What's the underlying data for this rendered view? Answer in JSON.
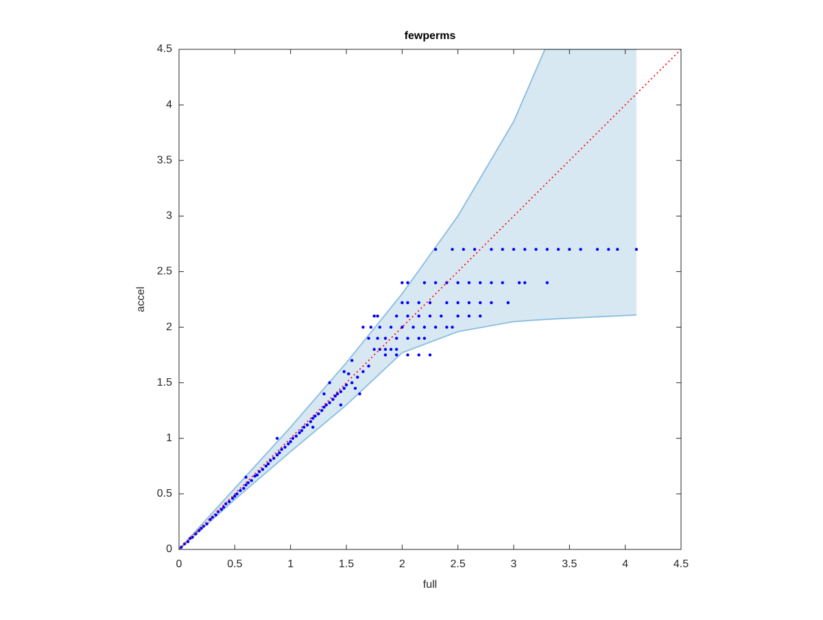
{
  "chart_data": {
    "type": "scatter",
    "title": "fewperms",
    "xlabel": "full",
    "ylabel": "accel",
    "xlim": [
      0,
      4.5
    ],
    "ylim": [
      0,
      4.5
    ],
    "xticks": [
      0,
      0.5,
      1,
      1.5,
      2,
      2.5,
      3,
      3.5,
      4,
      4.5
    ],
    "yticks": [
      0,
      0.5,
      1,
      1.5,
      2,
      2.5,
      3,
      3.5,
      4,
      4.5
    ],
    "grid": false,
    "band": {
      "color": "#d8e8f3",
      "edge_color": "#8fc0e0",
      "x": [
        0,
        0.5,
        1,
        1.5,
        2,
        2.5,
        3,
        3.28,
        4.1
      ],
      "upper": [
        0,
        0.55,
        1.1,
        1.68,
        2.3,
        3.0,
        3.85,
        4.5,
        4.5
      ],
      "lower": [
        0,
        0.45,
        0.88,
        1.3,
        1.77,
        1.96,
        2.05,
        2.07,
        2.11
      ]
    },
    "reference": {
      "color": "#ff0000",
      "x": [
        0,
        4.5
      ],
      "values": [
        0,
        4.5
      ]
    },
    "series": [
      {
        "color": "#0000ff",
        "x": [
          0.02,
          0.05,
          0.08,
          0.1,
          0.12,
          0.15,
          0.18,
          0.2,
          0.22,
          0.25,
          0.28,
          0.3,
          0.33,
          0.35,
          0.38,
          0.4,
          0.42,
          0.45,
          0.48,
          0.5,
          0.52,
          0.55,
          0.58,
          0.6,
          0.62,
          0.65,
          0.68,
          0.7,
          0.72,
          0.75,
          0.78,
          0.8,
          0.82,
          0.85,
          0.88,
          0.9,
          0.92,
          0.95,
          0.98,
          1.0,
          1.02,
          1.05,
          1.08,
          1.1,
          1.12,
          1.15,
          1.18,
          1.2,
          1.22,
          1.25,
          1.28,
          1.3,
          1.32,
          1.35,
          1.38,
          1.4,
          1.42,
          1.45,
          1.48,
          1.5,
          0.88,
          0.6,
          1.2,
          1.3,
          1.35,
          1.45,
          1.55,
          1.6,
          1.65,
          1.7,
          1.58,
          1.62,
          1.52,
          1.48,
          1.55,
          1.85,
          1.95,
          2.05,
          2.15,
          2.25,
          1.75,
          1.8,
          1.85,
          1.9,
          1.95,
          1.7,
          1.78,
          1.85,
          1.95,
          2.05,
          2.15,
          2.2,
          1.65,
          1.72,
          1.8,
          1.9,
          2.0,
          2.1,
          2.2,
          2.3,
          2.4,
          2.45,
          1.75,
          1.78,
          1.95,
          2.05,
          2.15,
          2.25,
          2.35,
          2.5,
          2.6,
          2.7,
          2.0,
          2.05,
          2.15,
          2.25,
          2.4,
          2.5,
          2.6,
          2.7,
          2.8,
          2.95,
          2.0,
          2.05,
          2.2,
          2.3,
          2.4,
          2.5,
          2.6,
          2.7,
          2.8,
          2.9,
          3.05,
          3.1,
          3.3,
          2.3,
          2.45,
          2.55,
          2.65,
          2.8,
          2.9,
          3.0,
          3.1,
          3.2,
          3.3,
          3.4,
          3.5,
          3.6,
          3.75,
          3.85,
          3.93,
          4.1
        ],
        "values": [
          0.02,
          0.05,
          0.07,
          0.1,
          0.11,
          0.14,
          0.17,
          0.19,
          0.21,
          0.23,
          0.27,
          0.29,
          0.31,
          0.34,
          0.36,
          0.38,
          0.41,
          0.43,
          0.46,
          0.48,
          0.5,
          0.53,
          0.55,
          0.58,
          0.6,
          0.62,
          0.66,
          0.67,
          0.7,
          0.72,
          0.75,
          0.77,
          0.8,
          0.82,
          0.85,
          0.87,
          0.9,
          0.92,
          0.95,
          0.97,
          1.0,
          1.02,
          1.05,
          1.07,
          1.1,
          1.12,
          1.15,
          1.18,
          1.2,
          1.22,
          1.25,
          1.28,
          1.3,
          1.32,
          1.35,
          1.38,
          1.4,
          1.42,
          1.45,
          1.48,
          1.0,
          0.65,
          1.1,
          1.4,
          1.5,
          1.3,
          1.5,
          1.55,
          1.6,
          1.65,
          1.45,
          1.4,
          1.58,
          1.6,
          1.7,
          1.75,
          1.75,
          1.75,
          1.75,
          1.75,
          1.8,
          1.8,
          1.8,
          1.8,
          1.8,
          1.9,
          1.9,
          1.9,
          1.9,
          1.9,
          1.9,
          1.9,
          2.0,
          2.0,
          2.0,
          2.0,
          2.0,
          2.0,
          2.0,
          2.0,
          2.0,
          2.0,
          2.1,
          2.1,
          2.1,
          2.1,
          2.1,
          2.1,
          2.1,
          2.1,
          2.1,
          2.1,
          2.22,
          2.22,
          2.22,
          2.22,
          2.22,
          2.22,
          2.22,
          2.22,
          2.22,
          2.22,
          2.4,
          2.4,
          2.4,
          2.4,
          2.4,
          2.4,
          2.4,
          2.4,
          2.4,
          2.4,
          2.4,
          2.4,
          2.4,
          2.7,
          2.7,
          2.7,
          2.7,
          2.7,
          2.7,
          2.7,
          2.7,
          2.7,
          2.7,
          2.7,
          2.7,
          2.7,
          2.7,
          2.7,
          2.7,
          2.7
        ]
      }
    ]
  }
}
